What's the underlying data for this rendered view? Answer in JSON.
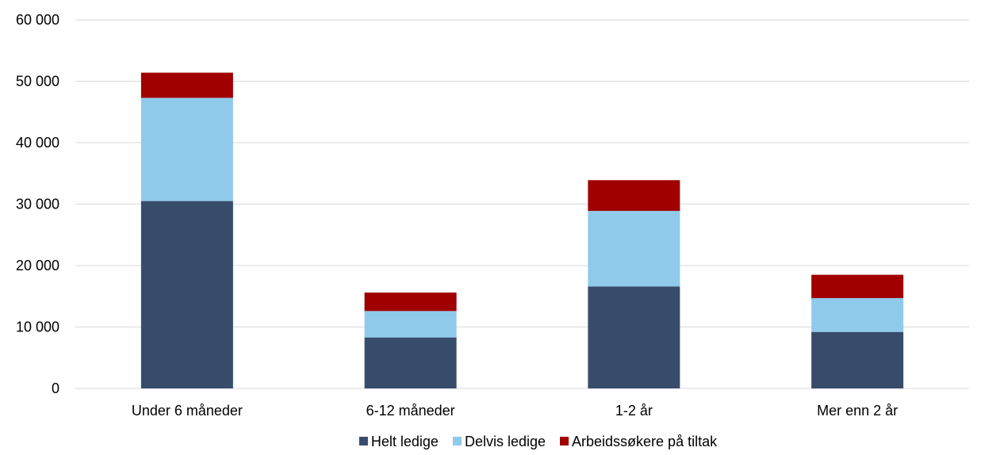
{
  "chart_data": {
    "type": "bar",
    "stacked": true,
    "categories": [
      "Under 6 måneder",
      "6-12 måneder",
      "1-2 år",
      "Mer enn 2 år"
    ],
    "series": [
      {
        "name": "Helt ledige",
        "values": [
          30500,
          8300,
          16600,
          9200
        ],
        "color": "#374c6b"
      },
      {
        "name": "Delvis ledige",
        "values": [
          16800,
          4300,
          12300,
          5500
        ],
        "color": "#8fcaeb"
      },
      {
        "name": "Arbeidssøkere på tiltak",
        "values": [
          4100,
          3000,
          5000,
          3800
        ],
        "color": "#a00000"
      }
    ],
    "ylim": [
      0,
      60000
    ],
    "y_ticks": [
      0,
      10000,
      20000,
      30000,
      40000,
      50000,
      60000
    ],
    "y_tick_labels": [
      "0",
      "10 000",
      "20 000",
      "30 000",
      "40 000",
      "50 000",
      "60 000"
    ],
    "grid": true,
    "legend_position": "bottom",
    "title": "",
    "xlabel": "",
    "ylabel": ""
  }
}
